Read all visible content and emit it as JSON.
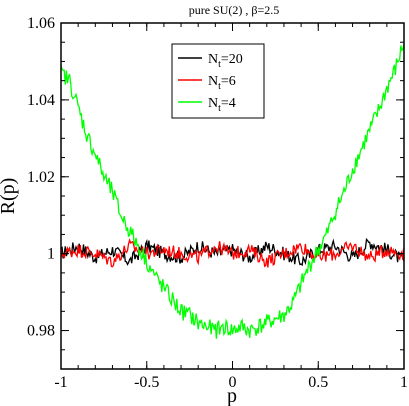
{
  "chart_data": {
    "type": "line",
    "title": "pure SU(2) , β=2.5",
    "xlabel": "p",
    "ylabel": "R(p)",
    "xlim": [
      -1,
      1
    ],
    "ylim": [
      0.97,
      1.06
    ],
    "xticks": [
      -1,
      -0.5,
      0,
      0.5,
      1
    ],
    "xtick_labels": [
      "-1",
      "-0.5",
      "0",
      "0.5",
      "1"
    ],
    "yticks": [
      0.98,
      1.0,
      1.02,
      1.04,
      1.06
    ],
    "ytick_labels": [
      "0.98",
      "1",
      "1.02",
      "1.04",
      "1.06"
    ],
    "grid": false,
    "legend_position": "top-center",
    "series": [
      {
        "name": "N_t=20",
        "legend_main": "N",
        "legend_sub": "t",
        "legend_rest": "=20",
        "color": "#000000",
        "x": [
          -1,
          -0.9,
          -0.8,
          -0.7,
          -0.6,
          -0.5,
          -0.4,
          -0.3,
          -0.2,
          -0.1,
          0,
          0.1,
          0.2,
          0.3,
          0.4,
          0.5,
          0.6,
          0.7,
          0.8,
          0.9,
          1
        ],
        "y": [
          1.0,
          1.002,
          0.999,
          1.001,
          0.998,
          1.002,
          1.0,
          0.999,
          1.002,
          1.0,
          1.001,
          0.999,
          1.002,
          1.0,
          0.998,
          1.001,
          1.002,
          0.999,
          1.003,
          1.001,
          0.998
        ]
      },
      {
        "name": "N_t=6",
        "legend_main": "N",
        "legend_sub": "t",
        "legend_rest": "=6",
        "color": "#ff0000",
        "x": [
          -1,
          -0.9,
          -0.8,
          -0.7,
          -0.6,
          -0.5,
          -0.4,
          -0.3,
          -0.2,
          -0.1,
          0,
          0.1,
          0.2,
          0.3,
          0.4,
          0.5,
          0.6,
          0.7,
          0.8,
          0.9,
          1
        ],
        "y": [
          1.0,
          1.001,
          1.0,
          0.998,
          1.002,
          1.0,
          1.001,
          1.0,
          0.999,
          1.002,
          1.0,
          1.001,
          0.998,
          1.0,
          1.002,
          0.999,
          1.0,
          1.002,
          0.999,
          1.001,
          1.0
        ]
      },
      {
        "name": "N_t=4",
        "legend_main": "N",
        "legend_sub": "t",
        "legend_rest": "=4",
        "color": "#00ff00",
        "x": [
          -1,
          -0.95,
          -0.9,
          -0.85,
          -0.8,
          -0.75,
          -0.7,
          -0.65,
          -0.6,
          -0.55,
          -0.5,
          -0.45,
          -0.4,
          -0.35,
          -0.3,
          -0.25,
          -0.2,
          -0.15,
          -0.1,
          -0.05,
          0,
          0.05,
          0.1,
          0.15,
          0.2,
          0.25,
          0.3,
          0.35,
          0.4,
          0.45,
          0.5,
          0.55,
          0.6,
          0.65,
          0.7,
          0.75,
          0.8,
          0.85,
          0.9,
          0.95,
          1
        ],
        "y": [
          1.047,
          1.045,
          1.038,
          1.031,
          1.026,
          1.02,
          1.016,
          1.01,
          1.006,
          1.002,
          0.998,
          0.994,
          0.991,
          0.988,
          0.985,
          0.984,
          0.982,
          0.981,
          0.98,
          0.981,
          0.98,
          0.981,
          0.98,
          0.981,
          0.982,
          0.983,
          0.984,
          0.987,
          0.992,
          0.997,
          1.001,
          1.005,
          1.011,
          1.016,
          1.022,
          1.027,
          1.032,
          1.037,
          1.043,
          1.048,
          1.055
        ]
      }
    ]
  }
}
